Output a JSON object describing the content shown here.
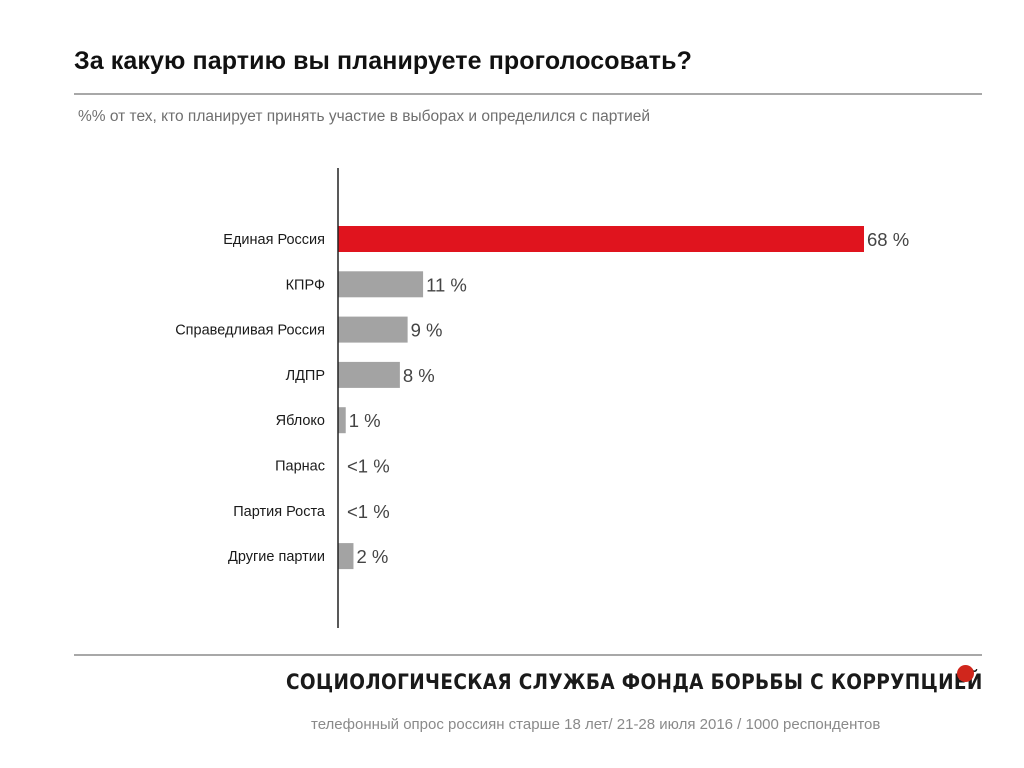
{
  "title": "За какую партию вы планируете проголосовать?",
  "subtitle": "%% от тех, кто планирует принять участие в выборах и определился с партией",
  "footer": {
    "organization": "СОЦИОЛОГИЧЕСКАЯ СЛУЖБА ФОНДА БОРЬБЫ С КОРРУПЦИЕЙ",
    "source": "телефонный опрос россиян старше 18 лет/ 21-28 июля 2016 / 1000 респондентов"
  },
  "colors": {
    "highlight": "#e0141e",
    "bar": "#a3a3a3",
    "axis": "#222222",
    "value_label": "#444444",
    "category_label": "#1a1a1a",
    "org_dot": "#d0261c"
  },
  "chart_data": {
    "type": "bar",
    "orientation": "horizontal",
    "categories": [
      "Единая Россия",
      "КПРФ",
      "Справедливая Россия",
      "ЛДПР",
      "Яблоко",
      "Парнас",
      "Партия Роста",
      "Другие партии"
    ],
    "values": [
      68,
      11,
      9,
      8,
      1,
      0.3,
      0.3,
      2
    ],
    "data_labels": [
      "68 %",
      "11 %",
      "9 %",
      "8 %",
      "1 %",
      "<1 %",
      "<1 %",
      "2 %"
    ],
    "highlighted": [
      true,
      false,
      false,
      false,
      false,
      false,
      false,
      false
    ],
    "unit": "%",
    "xlim": [
      0,
      68
    ],
    "grid": false,
    "legend": "none"
  }
}
